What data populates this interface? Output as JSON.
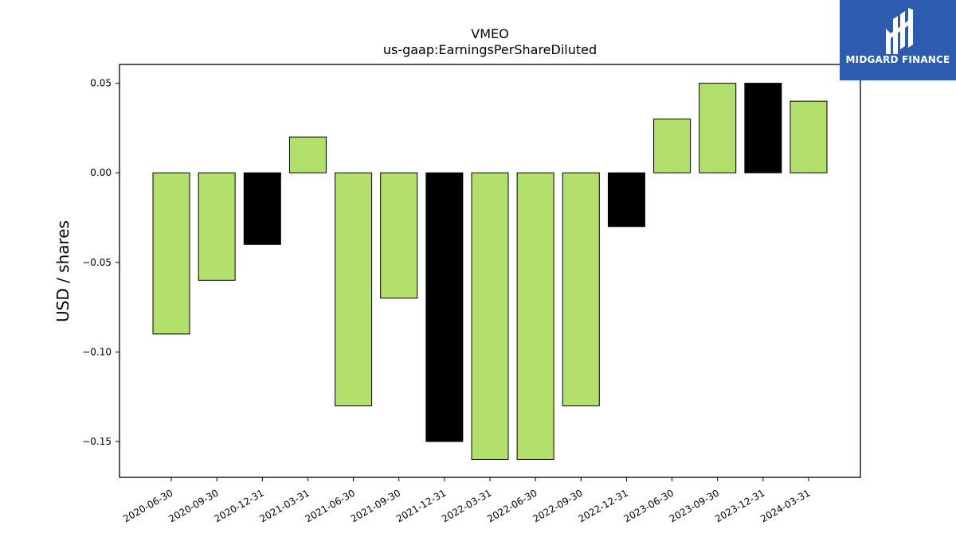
{
  "brand": {
    "name": "MIDGARD FINANCE",
    "bg_color": "#2d5bb0"
  },
  "chart_data": {
    "type": "bar",
    "title": "VMEO",
    "subtitle": "us-gaap:EarningsPerShareDiluted",
    "xlabel": "",
    "ylabel": "USD / shares",
    "ylim": [
      -0.17,
      0.0605
    ],
    "yticks": [
      0.05,
      0.0,
      -0.05,
      -0.1,
      -0.15
    ],
    "ytick_labels": [
      "0.05",
      "0.00",
      "−0.05",
      "−0.10",
      "−0.15"
    ],
    "categories": [
      "2020-06-30",
      "2020-09-30",
      "2020-12-31",
      "2021-03-31",
      "2021-06-30",
      "2021-09-30",
      "2021-12-31",
      "2022-03-31",
      "2022-06-30",
      "2022-09-30",
      "2022-12-31",
      "2023-06-30",
      "2023-09-30",
      "2023-12-31",
      "2024-03-31"
    ],
    "values": [
      -0.09,
      -0.06,
      -0.04,
      0.02,
      -0.13,
      -0.07,
      -0.15,
      -0.16,
      -0.16,
      -0.13,
      -0.03,
      0.03,
      0.05,
      0.05,
      0.04
    ],
    "bar_colors": [
      "#b3df6c",
      "#b3df6c",
      "#000000",
      "#b3df6c",
      "#b3df6c",
      "#b3df6c",
      "#000000",
      "#b3df6c",
      "#b3df6c",
      "#b3df6c",
      "#000000",
      "#b3df6c",
      "#b3df6c",
      "#000000",
      "#b3df6c"
    ],
    "grid": false,
    "legend": "none"
  }
}
